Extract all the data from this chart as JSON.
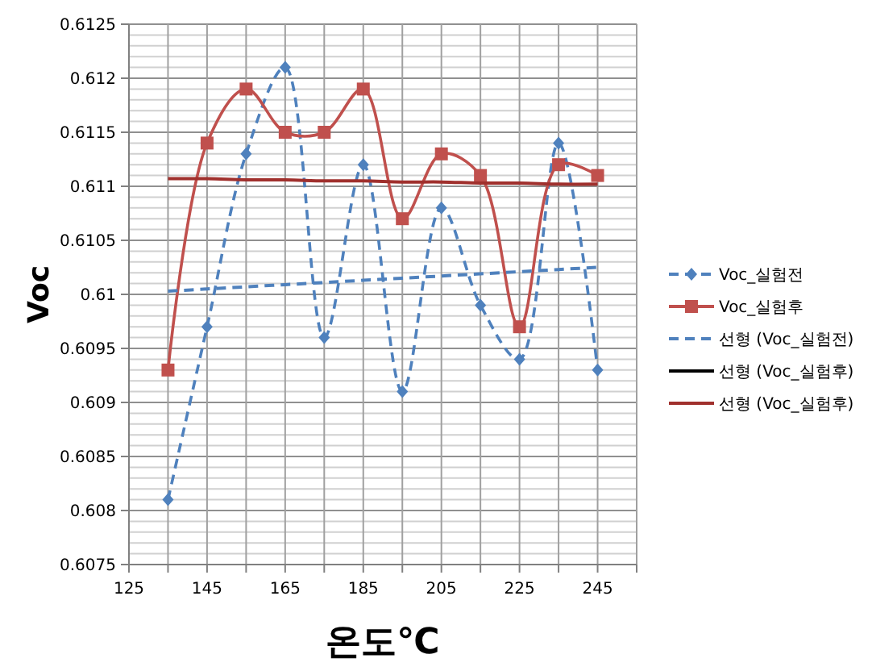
{
  "chart_data": {
    "type": "line",
    "xlabel": "온도℃",
    "ylabel": "Voc",
    "x": [
      135,
      145,
      155,
      165,
      175,
      185,
      195,
      205,
      215,
      225,
      235,
      245
    ],
    "xlim": [
      125,
      255
    ],
    "xticks": [
      125,
      {
        "value": 135,
        "label": null
      },
      145,
      {
        "value": 155,
        "label": null
      },
      165,
      {
        "value": 175,
        "label": null
      },
      185,
      {
        "value": 195,
        "label": null
      },
      205,
      {
        "value": 215,
        "label": null
      },
      225,
      {
        "value": 235,
        "label": null
      },
      245,
      {
        "value": 255,
        "label": null
      }
    ],
    "ylim": [
      0.6075,
      0.6125
    ],
    "yticks": [
      0.6075,
      {
        "value": 0.6076,
        "label": null
      },
      {
        "value": 0.6077,
        "label": null
      },
      {
        "value": 0.6078,
        "label": null
      },
      {
        "value": 0.6079,
        "label": null
      },
      0.608,
      {
        "value": 0.6081,
        "label": null
      },
      {
        "value": 0.6082,
        "label": null
      },
      {
        "value": 0.6083,
        "label": null
      },
      {
        "value": 0.6084,
        "label": null
      },
      0.6085,
      {
        "value": 0.6086,
        "label": null
      },
      {
        "value": 0.6087,
        "label": null
      },
      {
        "value": 0.6088,
        "label": null
      },
      {
        "value": 0.6089,
        "label": null
      },
      0.609,
      {
        "value": 0.6091,
        "label": null
      },
      {
        "value": 0.6092,
        "label": null
      },
      {
        "value": 0.6093,
        "label": null
      },
      {
        "value": 0.6094,
        "label": null
      },
      0.6095,
      {
        "value": 0.6096,
        "label": null
      },
      {
        "value": 0.6097,
        "label": null
      },
      {
        "value": 0.6098,
        "label": null
      },
      {
        "value": 0.6099,
        "label": null
      },
      0.61,
      {
        "value": 0.6101,
        "label": null
      },
      {
        "value": 0.6102,
        "label": null
      },
      {
        "value": 0.6103,
        "label": null
      },
      {
        "value": 0.6104,
        "label": null
      },
      0.6105,
      {
        "value": 0.6106,
        "label": null
      },
      {
        "value": 0.6107,
        "label": null
      },
      {
        "value": 0.6108,
        "label": null
      },
      {
        "value": 0.6109,
        "label": null
      },
      0.611,
      {
        "value": 0.6111,
        "label": null
      },
      {
        "value": 0.6112,
        "label": null
      },
      {
        "value": 0.6113,
        "label": null
      },
      {
        "value": 0.6114,
        "label": null
      },
      0.6115,
      {
        "value": 0.6116,
        "label": null
      },
      {
        "value": 0.6117,
        "label": null
      },
      {
        "value": 0.6118,
        "label": null
      },
      {
        "value": 0.6119,
        "label": null
      },
      0.612,
      {
        "value": 0.6121,
        "label": null
      },
      {
        "value": 0.6122,
        "label": null
      },
      {
        "value": 0.6123,
        "label": null
      },
      {
        "value": 0.6124,
        "label": null
      },
      0.6125
    ],
    "grid": true,
    "legend": "right",
    "series": [
      {
        "name": "Voc_실험전",
        "color": "#4f81bd",
        "marker": "diamond",
        "line_style": "dashed",
        "values": [
          0.6081,
          0.6097,
          0.6113,
          0.6121,
          0.6096,
          0.6112,
          0.6091,
          0.6108,
          0.6099,
          0.6094,
          0.6114,
          0.6093
        ]
      },
      {
        "name": "Voc_실험후",
        "color": "#c0504d",
        "marker": "square",
        "line_style": "solid",
        "values": [
          0.6093,
          0.6114,
          0.6119,
          0.6115,
          0.6115,
          0.6119,
          0.6107,
          0.6113,
          0.6111,
          0.6097,
          0.6112,
          0.6111
        ]
      },
      {
        "name": "선형 (Voc_실험전)",
        "color": "#4f81bd",
        "marker": "none",
        "line_style": "dashed",
        "values": [
          0.61003,
          0.61005,
          0.61007,
          0.61009,
          0.61011,
          0.61013,
          0.61015,
          0.61017,
          0.61019,
          0.61021,
          0.61023,
          0.61025
        ]
      },
      {
        "name": "선형 (Voc_실험후)",
        "color": "#000000",
        "marker": "none",
        "line_style": "solid",
        "values": [
          null,
          null,
          null,
          null,
          null,
          null,
          null,
          null,
          null,
          null,
          null,
          null
        ]
      },
      {
        "name": "선형 (Voc_실험후)",
        "color": "#a0302d",
        "marker": "none",
        "line_style": "solid",
        "values": [
          0.61107,
          0.61107,
          0.61106,
          0.61106,
          0.61105,
          0.61105,
          0.61104,
          0.61104,
          0.61103,
          0.61103,
          0.61102,
          0.61102
        ]
      }
    ]
  }
}
